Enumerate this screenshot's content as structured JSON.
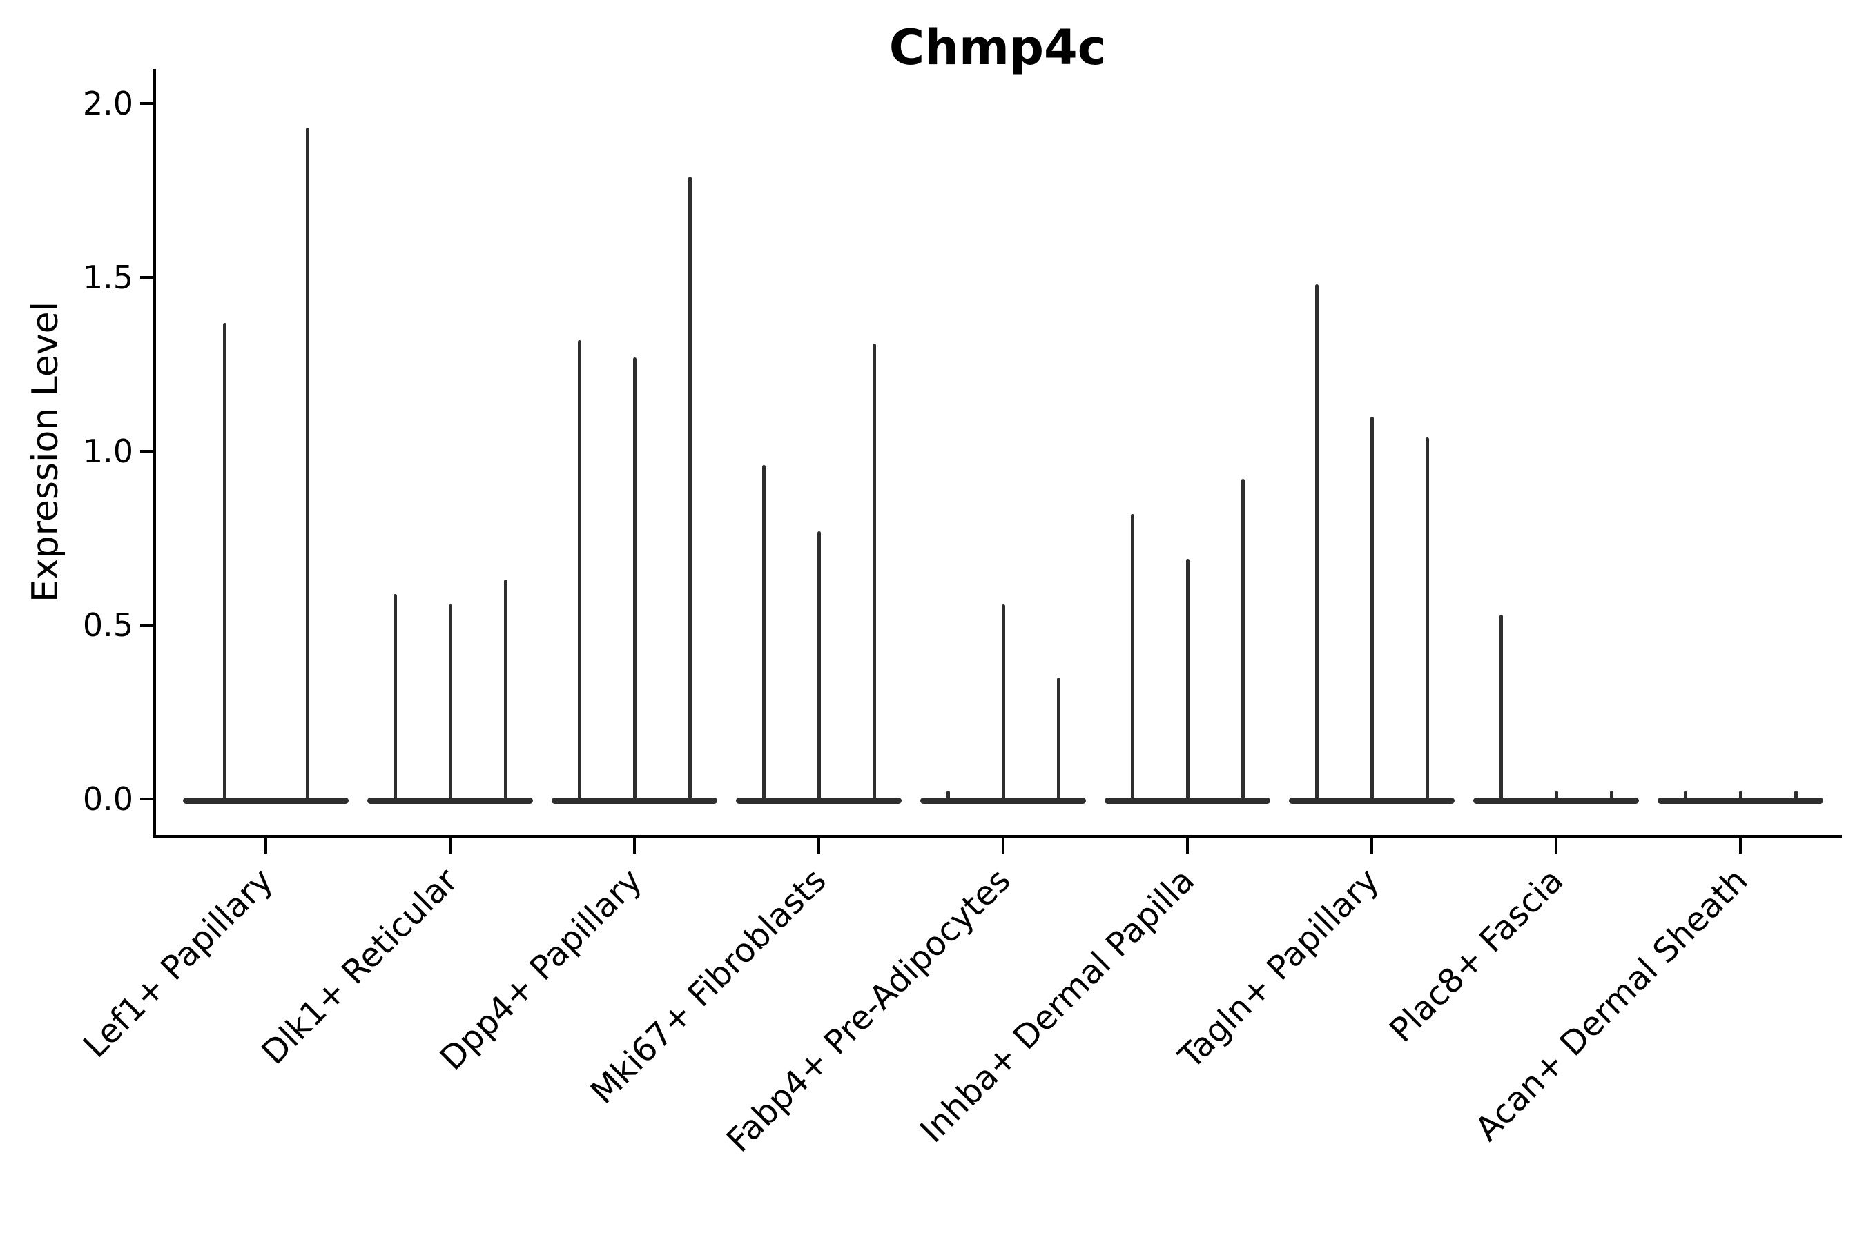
{
  "title": "Chmp4c",
  "y_axis": {
    "label": "Expression Level",
    "tick_labels": [
      "0.0",
      "0.5",
      "1.0",
      "1.5",
      "2.0"
    ],
    "tick_values": [
      0.0,
      0.5,
      1.0,
      1.5,
      2.0
    ]
  },
  "chart_data": {
    "type": "violin",
    "title": "Chmp4c",
    "xlabel": "",
    "ylabel": "Expression Level",
    "ylim": [
      0,
      2.1
    ],
    "yticks": [
      0.0,
      0.5,
      1.0,
      1.5,
      2.0
    ],
    "grid": false,
    "legend": "none",
    "line_color": "#2e2e2e",
    "axis_color": "#000000",
    "categories": [
      "Lef1+ Papillary",
      "Dlk1+ Reticular",
      "Dpp4+ Papillary",
      "Mki67+ Fibroblasts",
      "Fabp4+ Pre-Adipocytes",
      "Inhba+ Dermal Papilla",
      "Tagln+ Papillary",
      "Plac8+ Fascia",
      "Acan+ Dermal Sheath"
    ],
    "groups": [
      {
        "category": "Lef1+ Papillary",
        "violin_max_expression": [
          1.37,
          1.93
        ]
      },
      {
        "category": "Dlk1+ Reticular",
        "violin_max_expression": [
          0.59,
          0.56,
          0.63
        ]
      },
      {
        "category": "Dpp4+ Papillary",
        "violin_max_expression": [
          1.32,
          1.27,
          1.79
        ]
      },
      {
        "category": "Mki67+ Fibroblasts",
        "violin_max_expression": [
          0.96,
          0.77,
          1.31
        ]
      },
      {
        "category": "Fabp4+ Pre-Adipocytes",
        "violin_max_expression": [
          0.0,
          0.56,
          0.35
        ]
      },
      {
        "category": "Inhba+ Dermal Papilla",
        "violin_max_expression": [
          0.82,
          0.69,
          0.92
        ]
      },
      {
        "category": "Tagln+ Papillary",
        "violin_max_expression": [
          1.48,
          1.1,
          1.04
        ]
      },
      {
        "category": "Plac8+ Fascia",
        "violin_max_expression": [
          0.53,
          0.0,
          0.0
        ]
      },
      {
        "category": "Acan+ Dermal Sheath",
        "violin_max_expression": [
          0.0,
          0.0,
          0.0
        ]
      }
    ]
  }
}
